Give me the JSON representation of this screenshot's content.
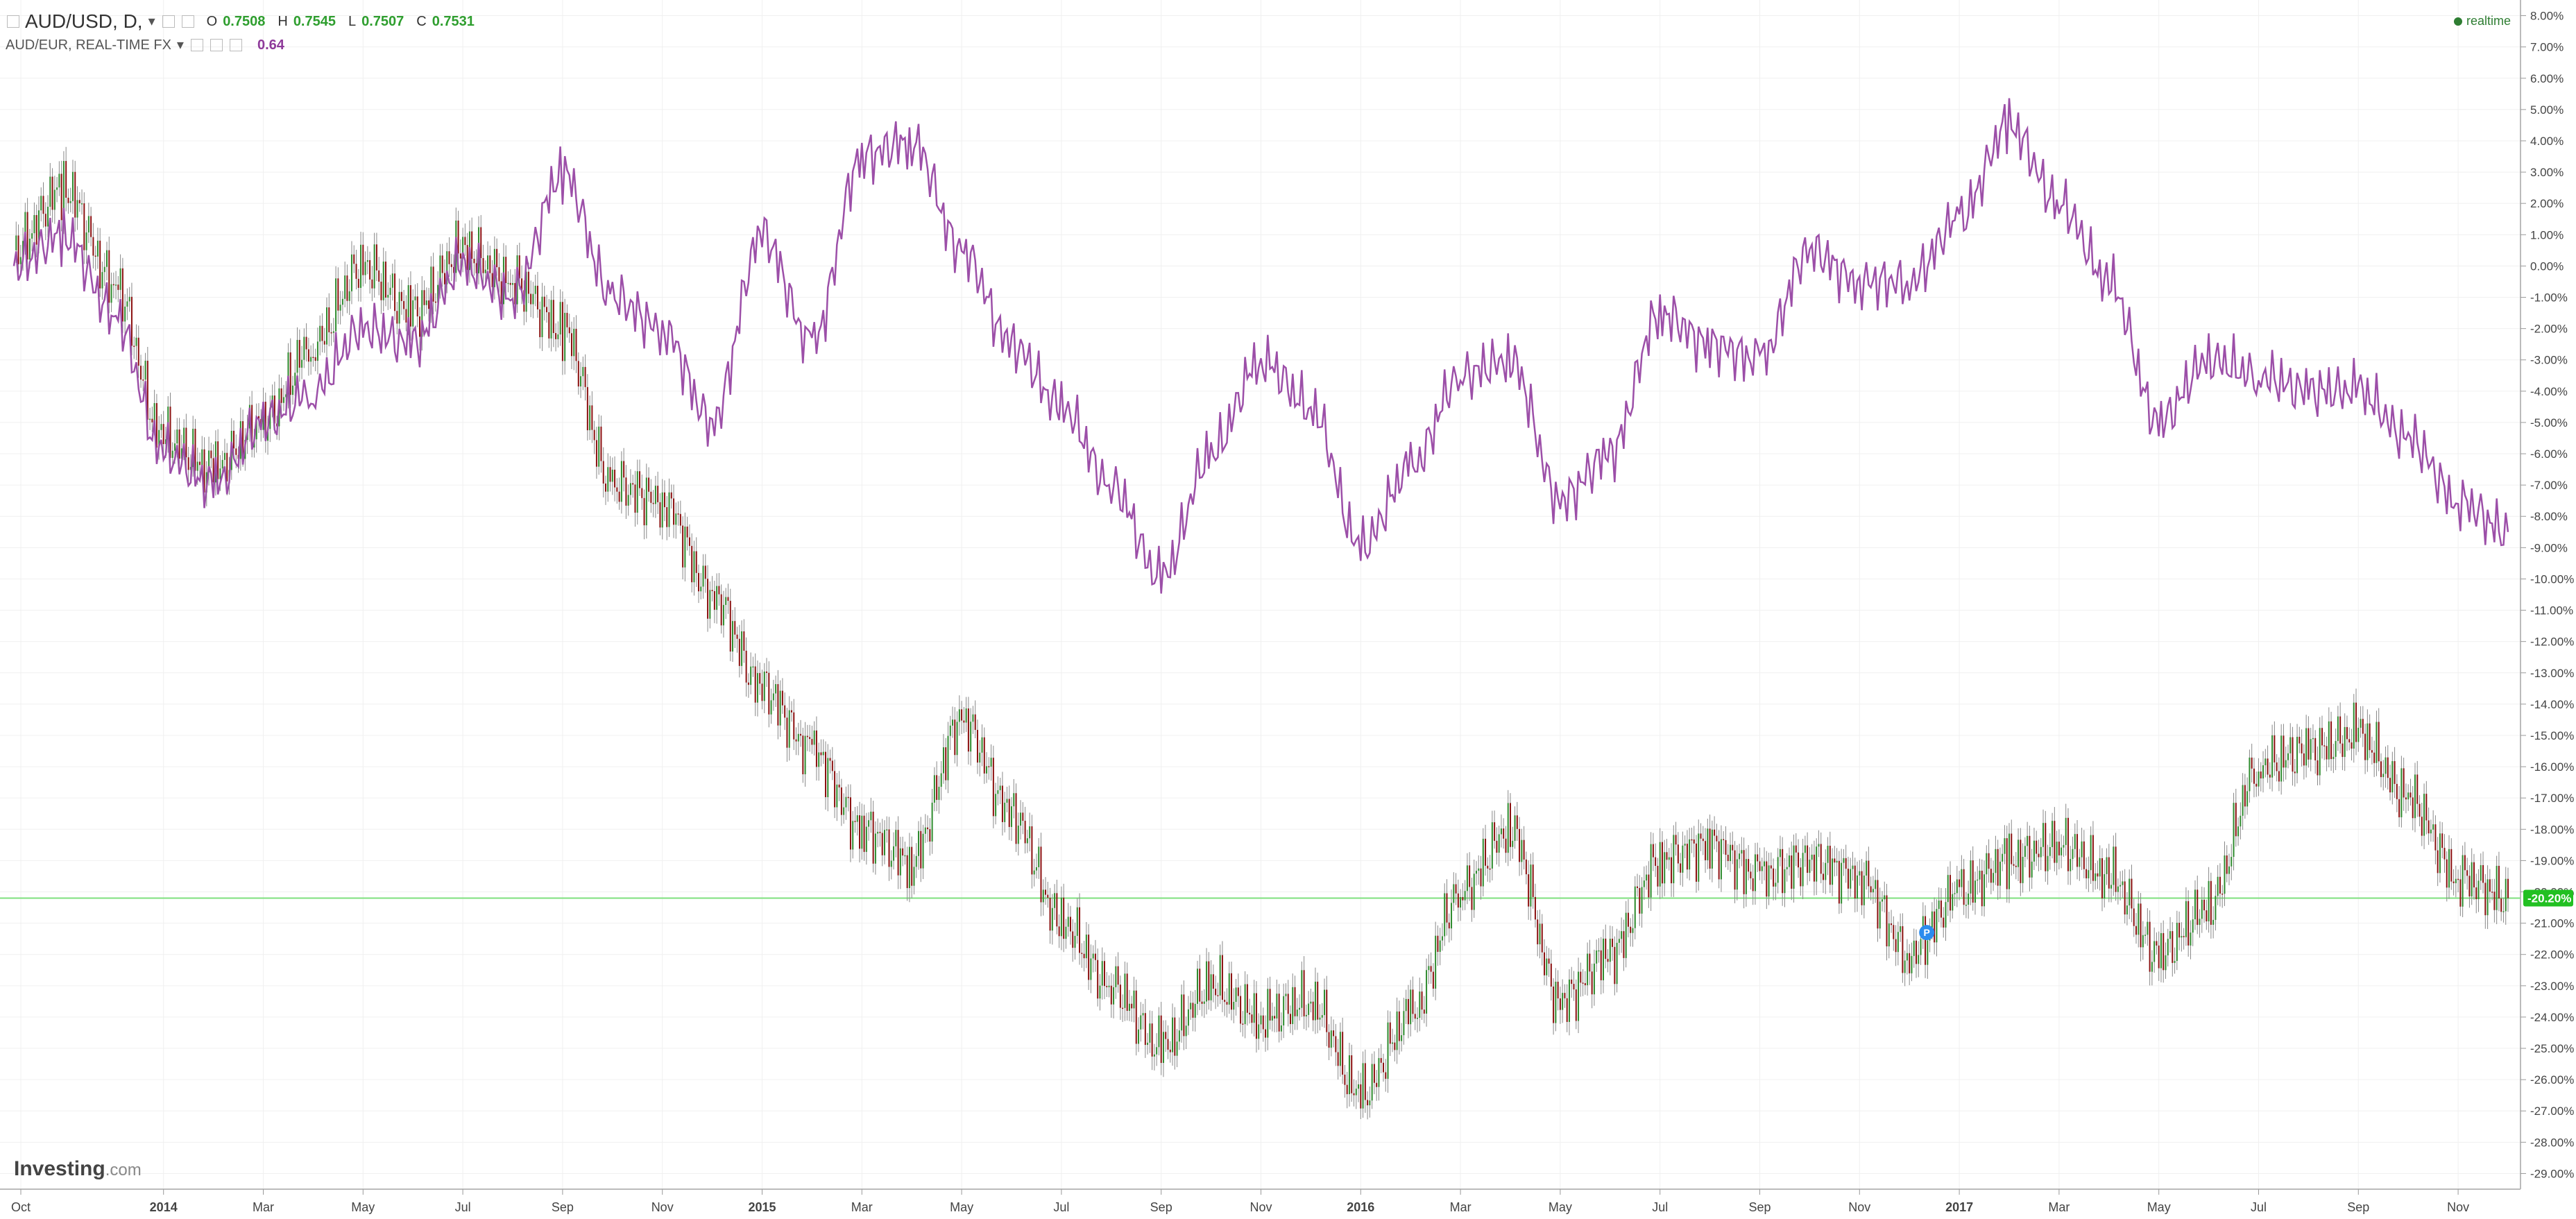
{
  "legend": {
    "primary": {
      "symbol": "AUD/USD, D,",
      "o_label": "O",
      "o": "0.7508",
      "h_label": "H",
      "h": "0.7545",
      "l_label": "L",
      "l": "0.7507",
      "c_label": "C",
      "c": "0.7531"
    },
    "compare": {
      "symbol": "AUD/EUR, REAL-TIME FX",
      "value": "0.64"
    }
  },
  "status": {
    "realtime": "realtime"
  },
  "branding": {
    "logo_main": "Investing",
    "logo_suffix": ".com"
  },
  "marker": {
    "label": "P"
  },
  "colors": {
    "up": "#2e8b2e",
    "down": "#8b1010",
    "compare": "#9c4fa8",
    "current_line": "#7ee07e",
    "current_badge": "#22c022"
  },
  "chart_data": {
    "type": "line",
    "x_tick_labels": [
      "Oct",
      "2014",
      "Mar",
      "May",
      "Jul",
      "Sep",
      "Nov",
      "2015",
      "Mar",
      "May",
      "Jul",
      "Sep",
      "Nov",
      "2016",
      "Mar",
      "May",
      "Jul",
      "Sep",
      "Nov",
      "2017",
      "Mar",
      "May",
      "Jul",
      "Sep",
      "Nov"
    ],
    "y_tick_labels": [
      "8.00%",
      "7.00%",
      "6.00%",
      "5.00%",
      "4.00%",
      "3.00%",
      "2.00%",
      "1.00%",
      "0.00%",
      "-1.00%",
      "-2.00%",
      "-3.00%",
      "-4.00%",
      "-5.00%",
      "-6.00%",
      "-7.00%",
      "-8.00%",
      "-9.00%",
      "-10.00%",
      "-11.00%",
      "-12.00%",
      "-13.00%",
      "-14.00%",
      "-15.00%",
      "-16.00%",
      "-17.00%",
      "-18.00%",
      "-19.00%",
      "-20.00%",
      "-21.00%",
      "-22.00%",
      "-23.00%",
      "-24.00%",
      "-25.00%",
      "-26.00%",
      "-27.00%",
      "-28.00%",
      "-29.00%"
    ],
    "ylim": [
      -29.5,
      8.5
    ],
    "current_value_label": "-20.20%",
    "current_value": -20.2,
    "series": [
      {
        "name": "AUD/USD, D,",
        "style": "candlestick",
        "x": [
          "2013-10",
          "2013-11",
          "2013-12",
          "2014-01",
          "2014-02",
          "2014-03",
          "2014-04",
          "2014-05",
          "2014-06",
          "2014-07",
          "2014-08",
          "2014-09",
          "2014-10",
          "2014-11",
          "2014-12",
          "2015-01",
          "2015-02",
          "2015-03",
          "2015-04",
          "2015-05",
          "2015-06",
          "2015-07",
          "2015-08",
          "2015-09",
          "2015-10",
          "2015-11",
          "2015-12",
          "2016-01",
          "2016-02",
          "2016-03",
          "2016-04",
          "2016-05",
          "2016-06",
          "2016-07",
          "2016-08",
          "2016-09",
          "2016-10",
          "2016-11",
          "2016-12",
          "2017-01",
          "2017-02",
          "2017-03",
          "2017-04",
          "2017-05",
          "2017-06",
          "2017-07",
          "2017-08",
          "2017-09",
          "2017-10",
          "2017-11",
          "2017-12"
        ],
        "values": [
          0.5,
          2.5,
          -0.5,
          -5.5,
          -6.5,
          -5.0,
          -2.5,
          0.0,
          -1.5,
          0.5,
          -0.5,
          -2.0,
          -7.0,
          -7.5,
          -10.5,
          -13.5,
          -15.5,
          -18.0,
          -19.0,
          -14.5,
          -17.5,
          -21.0,
          -23.0,
          -25.0,
          -23.0,
          -24.0,
          -23.5,
          -26.5,
          -24.0,
          -20.0,
          -18.0,
          -23.5,
          -22.0,
          -19.0,
          -18.5,
          -19.5,
          -19.0,
          -19.5,
          -22.0,
          -20.0,
          -19.0,
          -18.5,
          -19.5,
          -22.0,
          -20.5,
          -16.0,
          -15.5,
          -15.0,
          -17.0,
          -19.5,
          -20.2
        ]
      },
      {
        "name": "AUD/EUR, REAL-TIME FX",
        "style": "line",
        "x": [
          "2013-10",
          "2013-11",
          "2013-12",
          "2014-01",
          "2014-02",
          "2014-03",
          "2014-04",
          "2014-05",
          "2014-06",
          "2014-07",
          "2014-08",
          "2014-09",
          "2014-10",
          "2014-11",
          "2014-12",
          "2015-01",
          "2015-02",
          "2015-03",
          "2015-04",
          "2015-05",
          "2015-06",
          "2015-07",
          "2015-08",
          "2015-09",
          "2015-10",
          "2015-11",
          "2015-12",
          "2016-01",
          "2016-02",
          "2016-03",
          "2016-04",
          "2016-05",
          "2016-06",
          "2016-07",
          "2016-08",
          "2016-09",
          "2016-10",
          "2016-11",
          "2016-12",
          "2017-01",
          "2017-02",
          "2017-03",
          "2017-04",
          "2017-05",
          "2017-06",
          "2017-07",
          "2017-08",
          "2017-09",
          "2017-10",
          "2017-11",
          "2017-12"
        ],
        "values": [
          0.0,
          1.0,
          -1.5,
          -6.0,
          -7.0,
          -5.0,
          -4.0,
          -2.0,
          -2.5,
          0.0,
          -1.0,
          3.0,
          -1.0,
          -2.0,
          -5.0,
          1.0,
          -2.5,
          3.5,
          4.0,
          0.5,
          -2.5,
          -4.5,
          -7.0,
          -10.0,
          -6.0,
          -3.0,
          -4.5,
          -9.0,
          -6.5,
          -3.5,
          -3.0,
          -7.5,
          -6.0,
          -1.5,
          -2.5,
          -3.0,
          0.5,
          -0.5,
          -0.5,
          1.5,
          4.5,
          2.0,
          -0.5,
          -5.0,
          -3.0,
          -3.5,
          -4.0,
          -4.0,
          -5.5,
          -7.5,
          -8.5
        ]
      }
    ]
  }
}
